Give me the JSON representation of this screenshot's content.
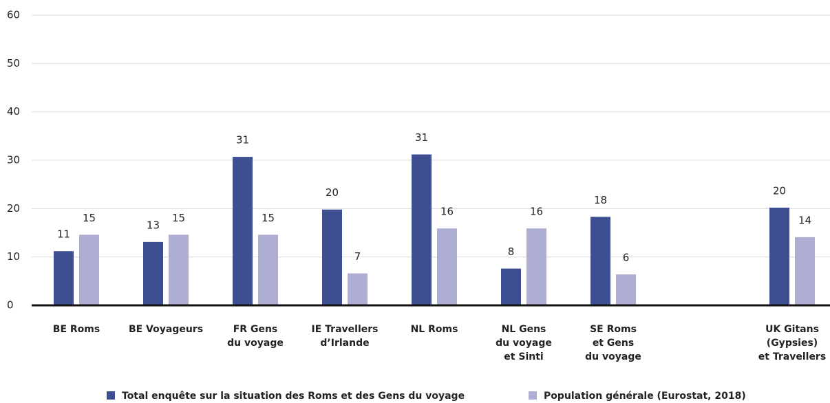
{
  "chart_data": {
    "type": "bar",
    "categories": [
      [
        "BE Roms"
      ],
      [
        "BE Voyageurs"
      ],
      [
        "FR Gens",
        "du voyage"
      ],
      [
        "IE Travellers",
        "d’Irlande"
      ],
      [
        "NL Roms"
      ],
      [
        "NL Gens",
        "du voyage",
        "et Sinti"
      ],
      [
        "SE Roms",
        "et Gens",
        "du voyage"
      ],
      null,
      [
        "UK Gitans",
        "(Gypsies)",
        "et Travellers"
      ]
    ],
    "series": [
      {
        "name": "Total enquête sur la situation des Roms et des Gens du voyage",
        "color": "#3d4f91",
        "values": [
          11.2,
          13.1,
          30.7,
          19.8,
          31.2,
          7.6,
          18.3,
          null,
          20.2
        ],
        "value_labels": [
          "11",
          "13",
          "31",
          "20",
          "31",
          "8",
          "18",
          null,
          "20"
        ]
      },
      {
        "name": "Population générale (Eurostat, 2018)",
        "color": "#aeaed4",
        "values": [
          14.6,
          14.6,
          14.6,
          6.6,
          15.9,
          15.9,
          6.4,
          null,
          14.1
        ],
        "value_labels": [
          "15",
          "15",
          "15",
          "7",
          "16",
          "16",
          "6",
          null,
          "14"
        ]
      }
    ],
    "ylim": [
      0,
      60
    ],
    "yticks": [
      0,
      10,
      20,
      30,
      40,
      50,
      60
    ],
    "grid": true
  }
}
